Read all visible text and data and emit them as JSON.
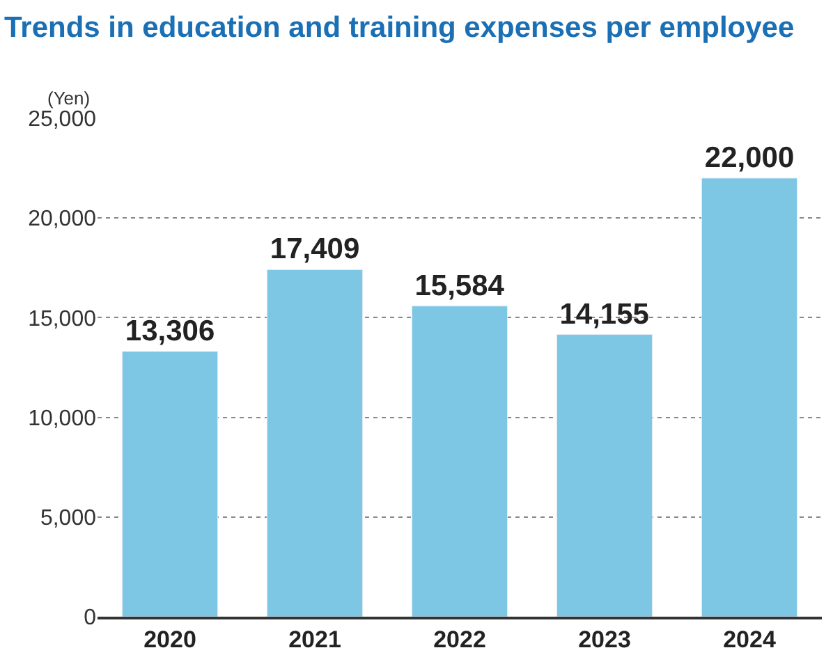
{
  "chart_data": {
    "type": "bar",
    "title": "Trends in education and training expenses per employee",
    "ylabel": "(Yen)",
    "categories": [
      "2020",
      "2021",
      "2022",
      "2023",
      "2024"
    ],
    "values": [
      13306,
      17409,
      15584,
      14155,
      22000
    ],
    "color": "#7dc6e4",
    "ylim": [
      0,
      25000
    ],
    "yticks": [
      {
        "value": 0,
        "label": "0"
      },
      {
        "value": 5000,
        "label": "5,000"
      },
      {
        "value": 10000,
        "label": "10,000"
      },
      {
        "value": 15000,
        "label": "15,000"
      },
      {
        "value": 20000,
        "label": "20,000"
      },
      {
        "value": 25000,
        "label": "25,000"
      }
    ],
    "value_labels": [
      "13,306",
      "17,409",
      "15,584",
      "14,155",
      "22,000"
    ],
    "grid": "y",
    "legend": false
  }
}
